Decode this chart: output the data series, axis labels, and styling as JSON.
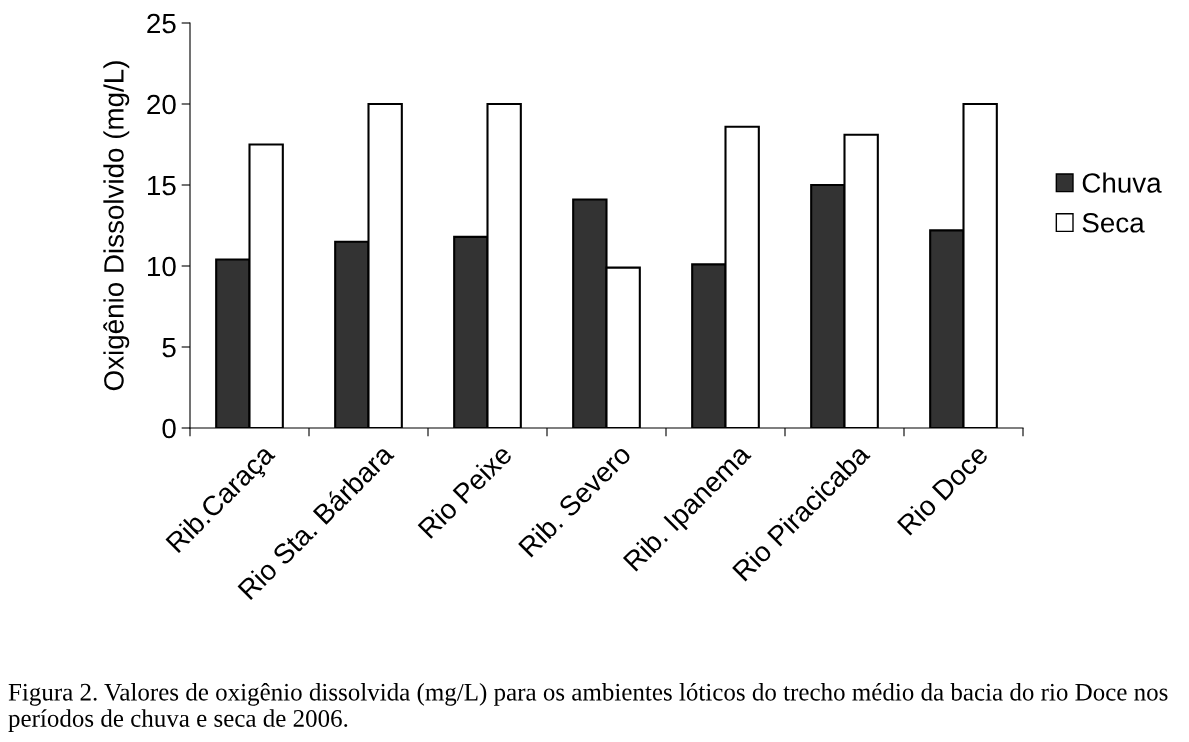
{
  "chart_data": {
    "type": "bar",
    "ylabel": "Oxigênio Dissolvido (mg/L)",
    "categories": [
      "Rib.Caraça",
      "Rio Sta. Bárbara",
      "Rio Peixe",
      "Rib. Severo",
      "Rib. Ipanema",
      "Rio Piracicaba",
      "Rio Doce"
    ],
    "series": [
      {
        "name": "Chuva",
        "color": "#333333",
        "values": [
          10.4,
          11.5,
          11.8,
          14.1,
          10.1,
          15.0,
          12.2
        ]
      },
      {
        "name": "Seca",
        "color": "#ffffff",
        "values": [
          17.5,
          20.0,
          20.0,
          9.9,
          18.6,
          18.1,
          20.0
        ]
      }
    ],
    "ylim": [
      0,
      25
    ],
    "yticks": [
      0,
      5,
      10,
      15,
      20,
      25
    ],
    "grid": false,
    "legend": "right",
    "annotations": [
      "Figura 2. Valores de oxigênio dissolvida (mg/L) para os ambientes lóticos do trecho médio da bacia do rio Doce nos períodos de chuva e seca de 2006."
    ]
  }
}
